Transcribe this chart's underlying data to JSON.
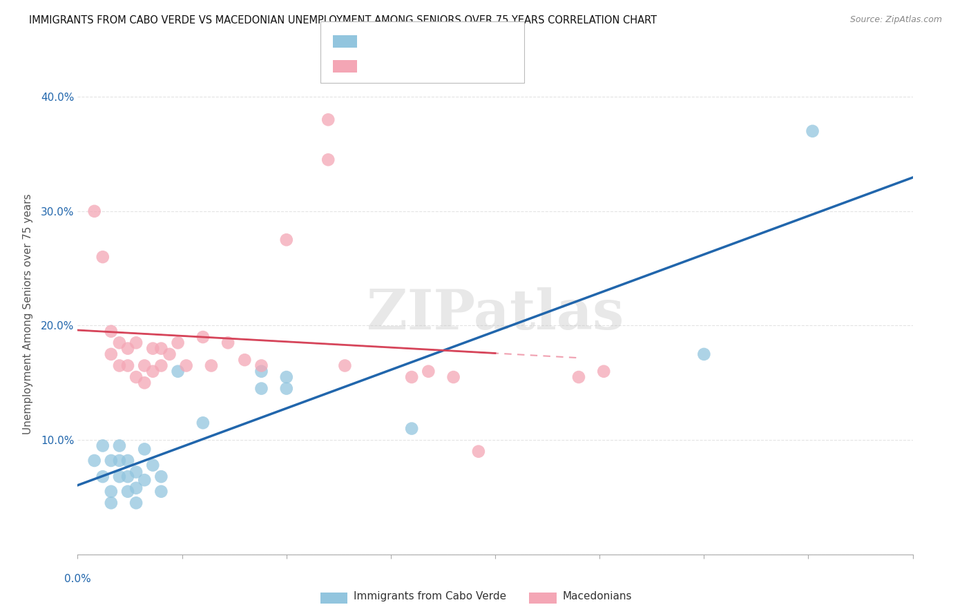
{
  "title": "IMMIGRANTS FROM CABO VERDE VS MACEDONIAN UNEMPLOYMENT AMONG SENIORS OVER 75 YEARS CORRELATION CHART",
  "source": "Source: ZipAtlas.com",
  "ylabel": "Unemployment Among Seniors over 75 years",
  "xlim": [
    0.0,
    0.1
  ],
  "ylim": [
    0.0,
    0.42
  ],
  "yticks": [
    0.0,
    0.1,
    0.2,
    0.3,
    0.4
  ],
  "ytick_labels": [
    "",
    "10.0%",
    "20.0%",
    "30.0%",
    "40.0%"
  ],
  "color_blue": "#92c5de",
  "color_blue_line": "#2166ac",
  "color_pink": "#f4a6b5",
  "color_pink_line": "#d6455a",
  "color_pink_dash": "#f0a0b0",
  "watermark_text": "ZIPatlas",
  "cabo_verde_points": [
    [
      0.002,
      0.082
    ],
    [
      0.003,
      0.095
    ],
    [
      0.003,
      0.068
    ],
    [
      0.004,
      0.082
    ],
    [
      0.004,
      0.055
    ],
    [
      0.004,
      0.045
    ],
    [
      0.005,
      0.095
    ],
    [
      0.005,
      0.068
    ],
    [
      0.005,
      0.082
    ],
    [
      0.006,
      0.055
    ],
    [
      0.006,
      0.068
    ],
    [
      0.006,
      0.082
    ],
    [
      0.007,
      0.072
    ],
    [
      0.007,
      0.058
    ],
    [
      0.007,
      0.045
    ],
    [
      0.008,
      0.092
    ],
    [
      0.008,
      0.065
    ],
    [
      0.009,
      0.078
    ],
    [
      0.01,
      0.055
    ],
    [
      0.01,
      0.068
    ],
    [
      0.012,
      0.16
    ],
    [
      0.015,
      0.115
    ],
    [
      0.022,
      0.16
    ],
    [
      0.022,
      0.145
    ],
    [
      0.025,
      0.155
    ],
    [
      0.025,
      0.145
    ],
    [
      0.04,
      0.11
    ],
    [
      0.075,
      0.175
    ],
    [
      0.088,
      0.37
    ]
  ],
  "macedonian_points": [
    [
      0.002,
      0.3
    ],
    [
      0.003,
      0.26
    ],
    [
      0.004,
      0.195
    ],
    [
      0.004,
      0.175
    ],
    [
      0.005,
      0.185
    ],
    [
      0.005,
      0.165
    ],
    [
      0.006,
      0.18
    ],
    [
      0.006,
      0.165
    ],
    [
      0.007,
      0.185
    ],
    [
      0.007,
      0.155
    ],
    [
      0.008,
      0.165
    ],
    [
      0.008,
      0.15
    ],
    [
      0.009,
      0.18
    ],
    [
      0.009,
      0.16
    ],
    [
      0.01,
      0.18
    ],
    [
      0.01,
      0.165
    ],
    [
      0.011,
      0.175
    ],
    [
      0.012,
      0.185
    ],
    [
      0.013,
      0.165
    ],
    [
      0.015,
      0.19
    ],
    [
      0.016,
      0.165
    ],
    [
      0.018,
      0.185
    ],
    [
      0.02,
      0.17
    ],
    [
      0.022,
      0.165
    ],
    [
      0.025,
      0.275
    ],
    [
      0.03,
      0.38
    ],
    [
      0.03,
      0.345
    ],
    [
      0.032,
      0.165
    ],
    [
      0.04,
      0.155
    ],
    [
      0.042,
      0.16
    ],
    [
      0.045,
      0.155
    ],
    [
      0.048,
      0.09
    ],
    [
      0.06,
      0.155
    ],
    [
      0.063,
      0.16
    ]
  ]
}
